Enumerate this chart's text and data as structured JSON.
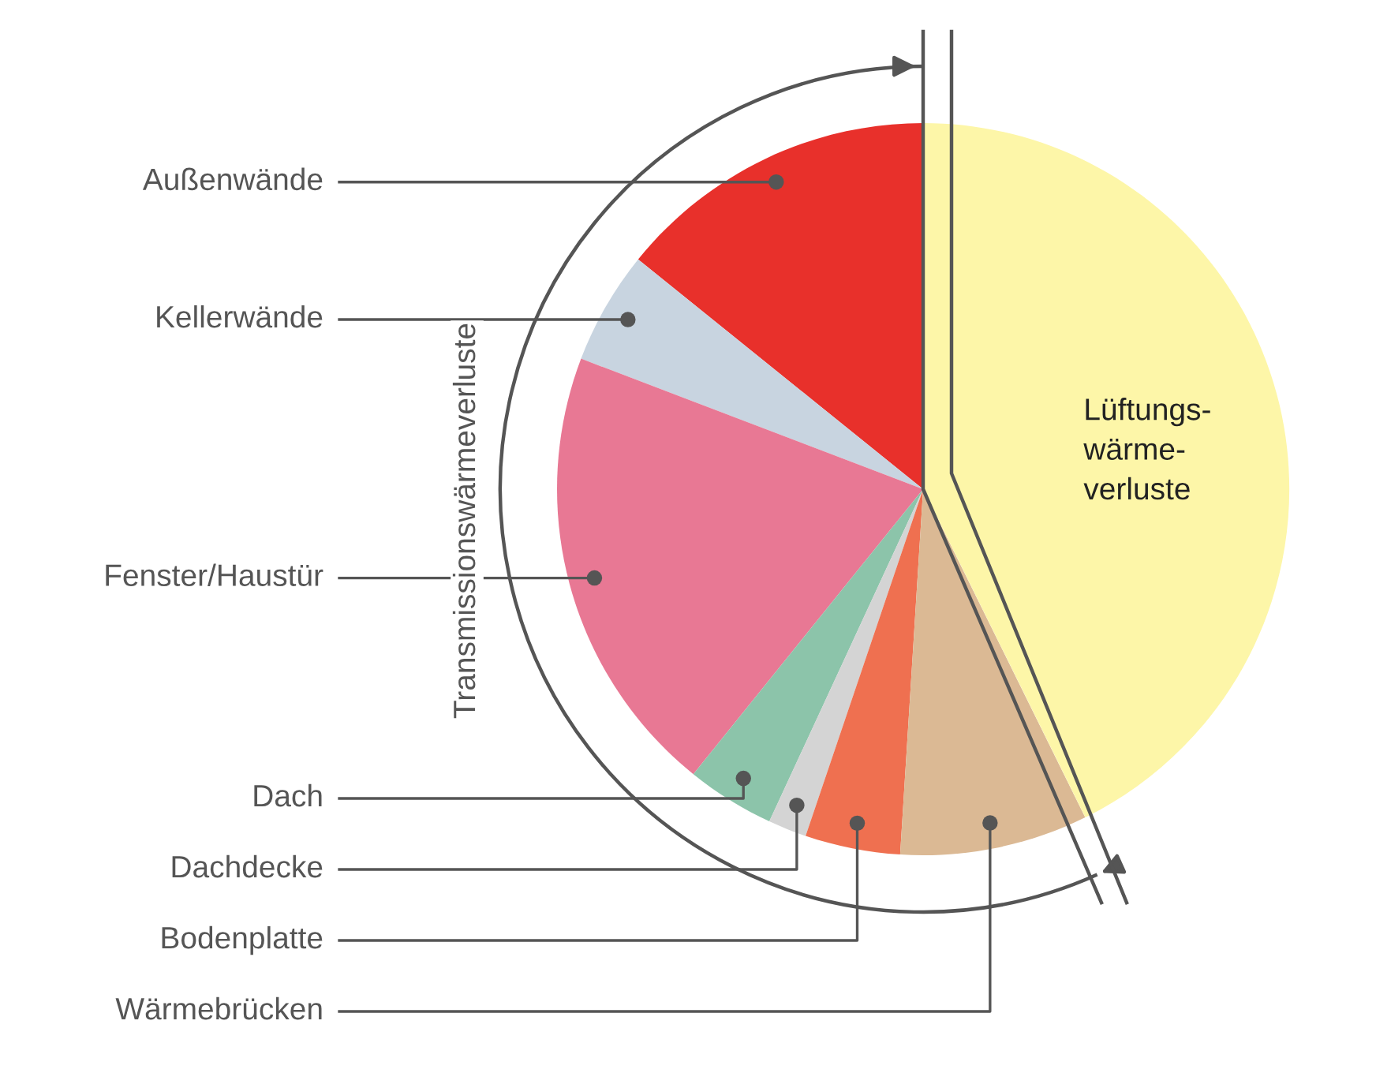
{
  "chart_data": {
    "type": "pie",
    "categories": [
      "Außenwände",
      "Kellerwände",
      "Fenster/Haustür",
      "Dach",
      "Dachdecke",
      "Bodenplatte",
      "Wärmebrücken",
      "Lüftungs-\nwärme-\nverluste"
    ],
    "values": [
      14.2,
      5,
      20,
      3.9,
      1.7,
      4.2,
      8.3,
      42.7
    ],
    "colors": [
      "#e8302b",
      "#c8d4e0",
      "#e87894",
      "#8cc4aa",
      "#d4d4d4",
      "#ef7050",
      "#dbb994",
      "#fdf6a8"
    ],
    "annotations": [
      "Transmissionswärmeverluste"
    ]
  }
}
